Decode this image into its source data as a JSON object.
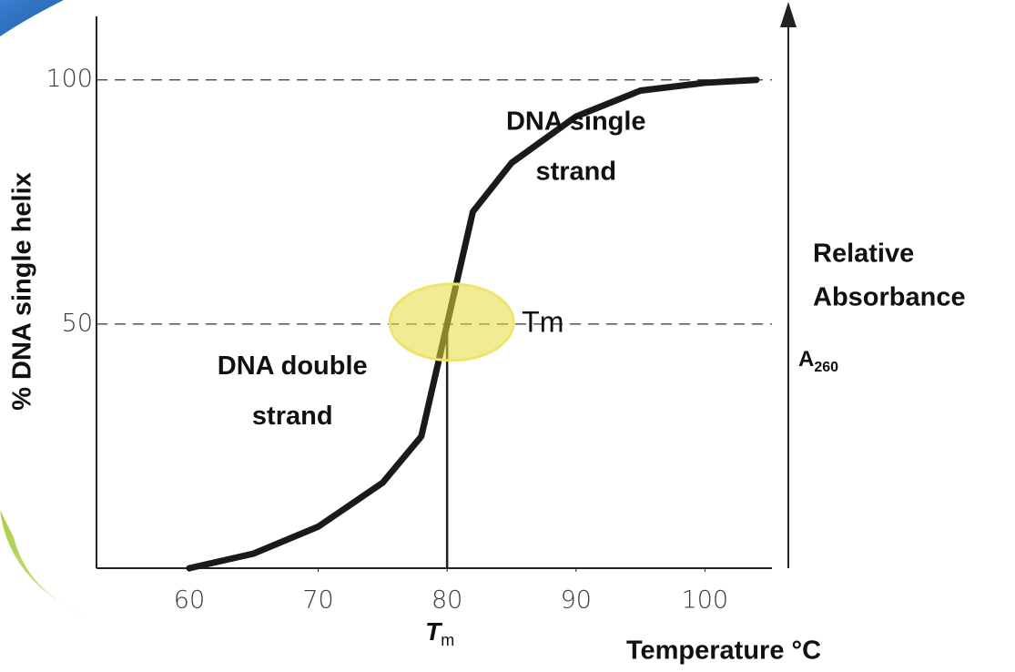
{
  "chart_data": {
    "type": "line",
    "x_label": "Temperature °C",
    "y_label": "% DNA single helix",
    "right_axis_label": [
      "Relative",
      "Absorbance"
    ],
    "right_axis_symbol": {
      "text": "A",
      "subscript": "260"
    },
    "annotations": [
      {
        "lines": [
          "DNA single",
          "strand"
        ],
        "x": 90,
        "y": 80
      },
      {
        "lines": [
          "DNA double",
          "strand"
        ],
        "x": 68,
        "y": 30
      }
    ],
    "highlight_label": "Tm",
    "marker": {
      "x": 80,
      "text": "T",
      "subscript": "m"
    },
    "x": [
      60,
      65,
      70,
      75,
      78,
      80,
      82,
      85,
      90,
      95,
      100,
      104
    ],
    "values": [
      0,
      3,
      8.5,
      17.5,
      27,
      50,
      73,
      83,
      92.5,
      97.8,
      99.4,
      100
    ],
    "color": "#1a1a1a",
    "xlim": [
      52.8,
      105.2
    ],
    "ylim": [
      0,
      113
    ],
    "xticks": [
      60,
      70,
      80,
      90,
      100
    ],
    "yticks": [
      50,
      100
    ],
    "grid": true
  }
}
